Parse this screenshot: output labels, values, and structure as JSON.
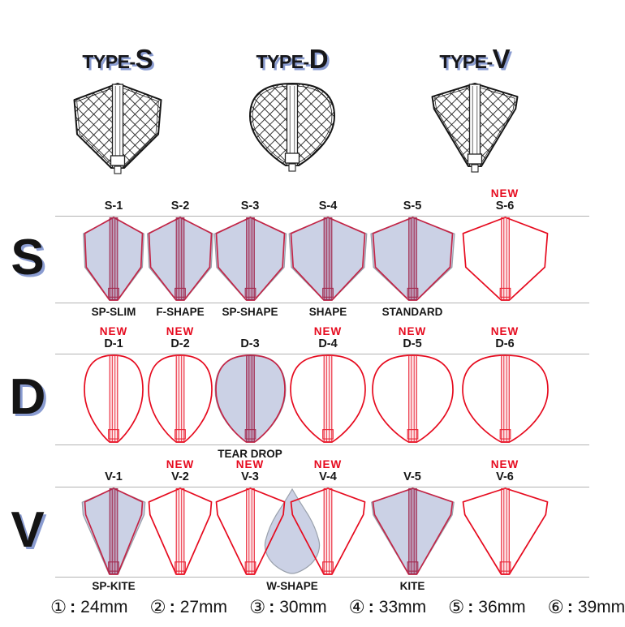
{
  "header": {
    "types": [
      {
        "prefix": "TYPE-",
        "letter": "S"
      },
      {
        "prefix": "TYPE-",
        "letter": "D"
      },
      {
        "prefix": "TYPE-",
        "letter": "V"
      }
    ]
  },
  "new_badge": "NEW",
  "rows": [
    {
      "letter": "S",
      "shape": "shield",
      "cells": [
        {
          "code": "S-1",
          "new": false,
          "filled": true,
          "name": "SP-SLIM"
        },
        {
          "code": "S-2",
          "new": false,
          "filled": true,
          "name": "F-SHAPE"
        },
        {
          "code": "S-3",
          "new": false,
          "filled": true,
          "name": "SP-SHAPE"
        },
        {
          "code": "S-4",
          "new": false,
          "filled": true,
          "name": "SHAPE"
        },
        {
          "code": "S-5",
          "new": false,
          "filled": true,
          "name": "STANDARD"
        },
        {
          "code": "S-6",
          "new": true,
          "filled": false,
          "name": ""
        }
      ]
    },
    {
      "letter": "D",
      "shape": "teardrop",
      "cells": [
        {
          "code": "D-1",
          "new": true,
          "filled": false,
          "name": ""
        },
        {
          "code": "D-2",
          "new": true,
          "filled": false,
          "name": ""
        },
        {
          "code": "D-3",
          "new": false,
          "filled": true,
          "name": "TEAR DROP"
        },
        {
          "code": "D-4",
          "new": true,
          "filled": false,
          "name": ""
        },
        {
          "code": "D-5",
          "new": true,
          "filled": false,
          "name": ""
        },
        {
          "code": "D-6",
          "new": true,
          "filled": false,
          "name": ""
        }
      ]
    },
    {
      "letter": "V",
      "shape": "kite",
      "cells": [
        {
          "code": "V-1",
          "new": false,
          "filled": true,
          "name": "SP-KITE"
        },
        {
          "code": "V-2",
          "new": true,
          "filled": false,
          "name": ""
        },
        {
          "code": "V-3",
          "new": true,
          "filled": false,
          "name": ""
        },
        {
          "code": "V-4",
          "new": true,
          "filled": false,
          "name": ""
        },
        {
          "code": "V-5",
          "new": false,
          "filled": true,
          "name": "KITE"
        },
        {
          "code": "V-6",
          "new": true,
          "filled": false,
          "name": ""
        }
      ],
      "extra_silhouette": {
        "name": "W-SHAPE"
      }
    }
  ],
  "footer": {
    "separator": ":",
    "sizes": [
      {
        "symbol": "①",
        "size": "24mm"
      },
      {
        "symbol": "②",
        "size": "27mm"
      },
      {
        "symbol": "③",
        "size": "30mm"
      },
      {
        "symbol": "④",
        "size": "33mm"
      },
      {
        "symbol": "⑤",
        "size": "36mm"
      },
      {
        "symbol": "⑥",
        "size": "39mm"
      }
    ]
  },
  "colors": {
    "accent_red": "#e60a1e",
    "filled_stroke_red": "#c32446",
    "lavender_fill": "#cbd1e5",
    "silhouette_stroke": "#99a0ab",
    "shadow_periwinkle": "#8a9cd1",
    "text_black": "#151515",
    "band_line": "#b3b3b3"
  }
}
